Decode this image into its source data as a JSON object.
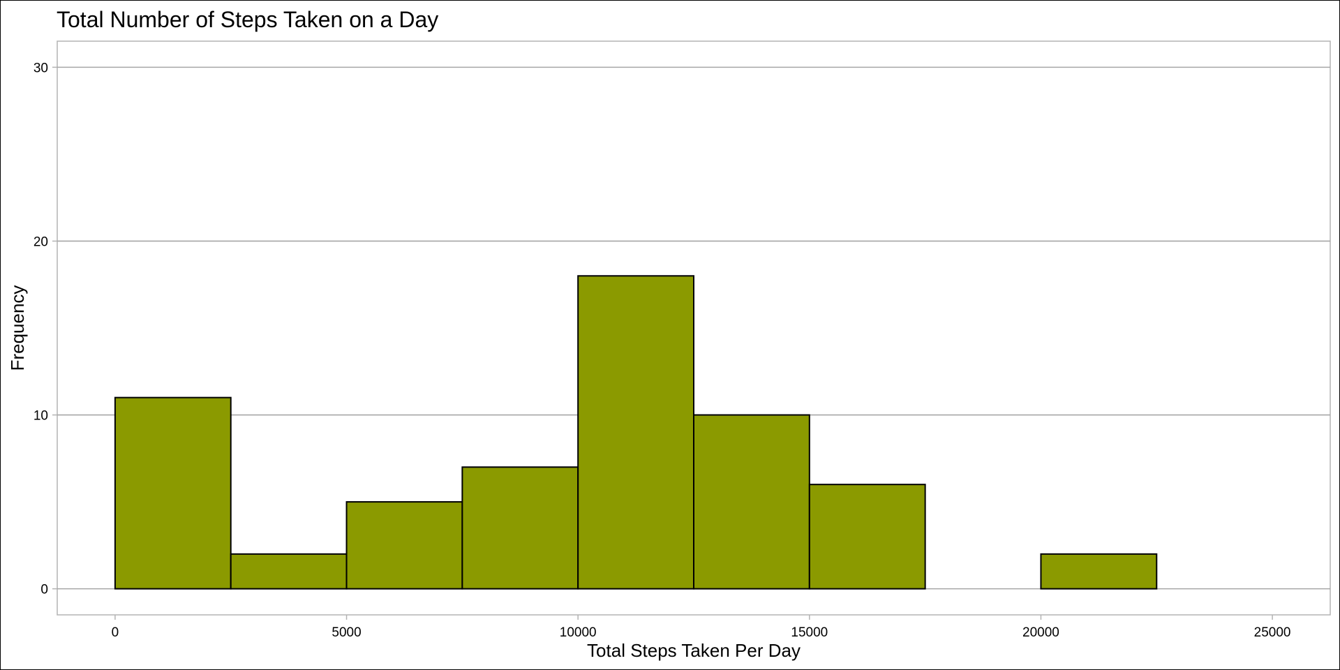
{
  "chart_data": {
    "type": "bar",
    "title": "Total Number of Steps Taken on a Day",
    "xlabel": "Total Steps Taken Per Day",
    "ylabel": "Frequency",
    "bin_edges": [
      0,
      2500,
      5000,
      7500,
      10000,
      12500,
      15000,
      17500,
      20000,
      22500,
      25000
    ],
    "values": [
      11,
      2,
      5,
      7,
      18,
      10,
      6,
      0,
      2,
      0
    ],
    "xlim": [
      -1250,
      26250
    ],
    "ylim": [
      -1.5,
      31.5
    ],
    "x_ticks": [
      0,
      5000,
      10000,
      15000,
      20000,
      25000
    ],
    "x_tick_labels": [
      "0",
      "5000",
      "10000",
      "15000",
      "20000",
      "25000"
    ],
    "y_ticks": [
      0,
      10,
      20,
      30
    ],
    "y_tick_labels": [
      "0",
      "10",
      "20",
      "30"
    ],
    "grid": "horizontal",
    "legend": "none",
    "colors": {
      "bar_fill": "#8b9a00",
      "bar_outline": "#000000",
      "grid": "#a6a6a6",
      "panel_border": "#b3b3b3",
      "text": "#000000"
    }
  }
}
